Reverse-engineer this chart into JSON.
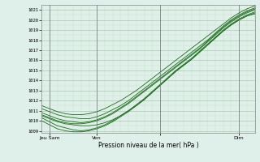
{
  "title": "Pression niveau de la mer( hPa )",
  "ylabel_values": [
    1009,
    1010,
    1011,
    1012,
    1013,
    1014,
    1015,
    1016,
    1017,
    1018,
    1019,
    1020,
    1021
  ],
  "ylim": [
    1008.8,
    1021.5
  ],
  "xlim": [
    0,
    108
  ],
  "xtick_positions": [
    4,
    28,
    60,
    100
  ],
  "xtick_labels": [
    "Jeu Sam",
    "Ven",
    "",
    "Dim"
  ],
  "background_color": "#dff0ea",
  "grid_color_major": "#aacaaa",
  "grid_color_minor": "#c8ddc8",
  "line_color": "#1a6b1a",
  "figsize": [
    3.2,
    2.0
  ],
  "dpi": 100,
  "x_points": [
    0,
    4,
    8,
    12,
    16,
    20,
    24,
    28,
    32,
    36,
    40,
    44,
    48,
    52,
    56,
    60,
    64,
    68,
    72,
    76,
    80,
    84,
    88,
    92,
    96,
    100,
    104,
    108
  ],
  "lines": [
    [
      1010.5,
      1010.2,
      1009.9,
      1009.7,
      1009.6,
      1009.5,
      1009.5,
      1009.6,
      1009.8,
      1010.1,
      1010.5,
      1011.0,
      1011.5,
      1012.1,
      1012.8,
      1013.5,
      1014.2,
      1014.9,
      1015.5,
      1016.1,
      1016.8,
      1017.5,
      1018.2,
      1018.9,
      1019.5,
      1020.0,
      1020.4,
      1020.6
    ],
    [
      1010.3,
      1009.9,
      1009.5,
      1009.3,
      1009.1,
      1009.0,
      1009.1,
      1009.3,
      1009.6,
      1010.0,
      1010.5,
      1011.0,
      1011.6,
      1012.2,
      1012.9,
      1013.6,
      1014.3,
      1015.0,
      1015.6,
      1016.2,
      1016.9,
      1017.6,
      1018.3,
      1019.0,
      1019.6,
      1020.1,
      1020.5,
      1020.8
    ],
    [
      1010.8,
      1010.5,
      1010.2,
      1010.0,
      1009.9,
      1009.8,
      1009.9,
      1010.1,
      1010.4,
      1010.8,
      1011.3,
      1011.8,
      1012.4,
      1013.0,
      1013.6,
      1014.2,
      1014.8,
      1015.4,
      1016.0,
      1016.6,
      1017.2,
      1017.9,
      1018.6,
      1019.3,
      1019.9,
      1020.4,
      1020.8,
      1021.1
    ],
    [
      1011.2,
      1010.9,
      1010.6,
      1010.4,
      1010.3,
      1010.2,
      1010.2,
      1010.4,
      1010.7,
      1011.1,
      1011.5,
      1012.0,
      1012.6,
      1013.2,
      1013.8,
      1014.4,
      1015.0,
      1015.6,
      1016.2,
      1016.8,
      1017.4,
      1018.0,
      1018.7,
      1019.4,
      1020.0,
      1020.5,
      1020.9,
      1021.2
    ],
    [
      1010.0,
      1009.6,
      1009.2,
      1009.0,
      1008.9,
      1008.9,
      1009.0,
      1009.2,
      1009.5,
      1009.9,
      1010.4,
      1010.9,
      1011.5,
      1012.1,
      1012.8,
      1013.5,
      1014.2,
      1014.9,
      1015.5,
      1016.1,
      1016.8,
      1017.5,
      1018.2,
      1018.9,
      1019.5,
      1020.0,
      1020.4,
      1020.7
    ],
    [
      1010.6,
      1010.3,
      1010.0,
      1009.8,
      1009.7,
      1009.7,
      1009.8,
      1010.0,
      1010.3,
      1010.7,
      1011.2,
      1011.7,
      1012.3,
      1012.9,
      1013.5,
      1014.1,
      1014.7,
      1015.3,
      1015.9,
      1016.5,
      1017.1,
      1017.8,
      1018.5,
      1019.2,
      1019.8,
      1020.3,
      1020.7,
      1021.0
    ],
    [
      1011.5,
      1011.2,
      1010.9,
      1010.7,
      1010.6,
      1010.6,
      1010.7,
      1010.9,
      1011.2,
      1011.6,
      1012.0,
      1012.5,
      1013.0,
      1013.6,
      1014.2,
      1014.8,
      1015.4,
      1016.0,
      1016.6,
      1017.2,
      1017.8,
      1018.4,
      1019.0,
      1019.6,
      1020.2,
      1020.7,
      1021.1,
      1021.4
    ]
  ]
}
